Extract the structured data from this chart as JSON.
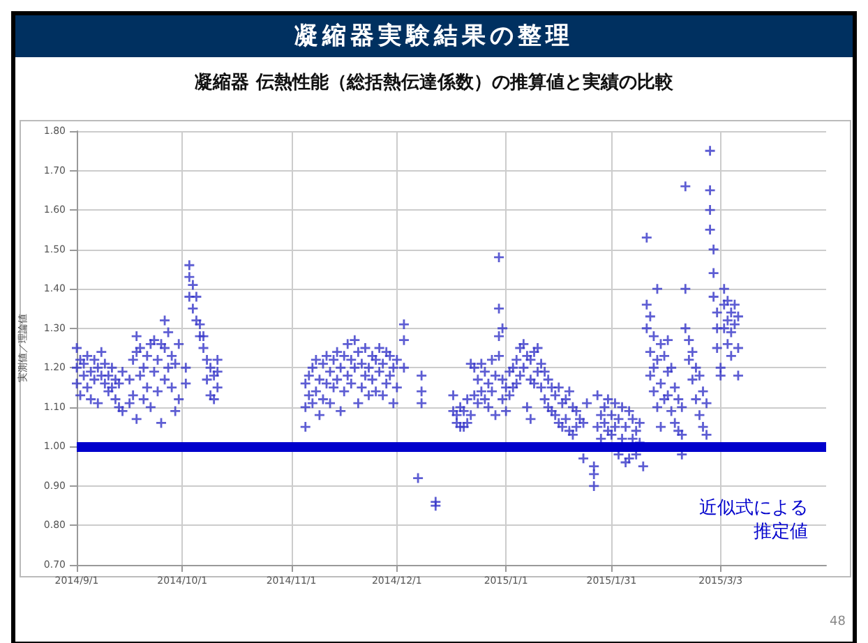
{
  "chart_data": {
    "type": "scatter",
    "title": "凝縮器実験結果の整理",
    "subtitle": "凝縮器 伝熱性能（総括熱伝達係数）の推算値と実績の比較",
    "ylabel": "実測値／理論値",
    "marker": "cross",
    "grid": true,
    "xlim": [
      "2014-09-01",
      "2015-04-02"
    ],
    "xticks": [
      {
        "value": "2014-09-01",
        "label": "2014/9/1"
      },
      {
        "value": "2014-10-01",
        "label": "2014/10/1"
      },
      {
        "value": "2014-11-01",
        "label": "2014/11/1"
      },
      {
        "value": "2014-12-01",
        "label": "2014/12/1"
      },
      {
        "value": "2015-01-01",
        "label": "2015/1/1"
      },
      {
        "value": "2015-01-31",
        "label": "2015/1/31"
      },
      {
        "value": "2015-03-03",
        "label": "2015/3/3"
      }
    ],
    "ylim": [
      0.7,
      1.8
    ],
    "yticks": [
      {
        "value": 0.7,
        "label": "0.70"
      },
      {
        "value": 0.8,
        "label": "0.80"
      },
      {
        "value": 0.9,
        "label": "0.90"
      },
      {
        "value": 1.0,
        "label": "1.00"
      },
      {
        "value": 1.1,
        "label": "1.10"
      },
      {
        "value": 1.2,
        "label": "1.20"
      },
      {
        "value": 1.3,
        "label": "1.30"
      },
      {
        "value": 1.4,
        "label": "1.40"
      },
      {
        "value": 1.5,
        "label": "1.50"
      },
      {
        "value": 1.6,
        "label": "1.60"
      },
      {
        "value": 1.7,
        "label": "1.70"
      },
      {
        "value": 1.8,
        "label": "1.80"
      }
    ],
    "ref_lines": [
      {
        "axis": "y",
        "value": 1.0,
        "label": "近似式による推定値",
        "color": "#0000cc"
      }
    ],
    "annotations": [
      "48"
    ],
    "series": [
      {
        "color": "#3535c8",
        "x": [
          "2014-09-01",
          "2014-09-01",
          "2014-09-01",
          "2014-09-02",
          "2014-09-02",
          "2014-09-03",
          "2014-09-03",
          "2014-09-04",
          "2014-09-04",
          "2014-09-05",
          "2014-09-05",
          "2014-09-06",
          "2014-09-06",
          "2014-09-07",
          "2014-09-07",
          "2014-09-08",
          "2014-09-08",
          "2014-09-09",
          "2014-09-09",
          "2014-09-10",
          "2014-09-10",
          "2014-09-11",
          "2014-09-11",
          "2014-09-12",
          "2014-09-12",
          "2014-09-13",
          "2014-09-13",
          "2014-09-14",
          "2014-09-14",
          "2014-09-16",
          "2014-09-16",
          "2014-09-17",
          "2014-09-17",
          "2014-09-18",
          "2014-09-18",
          "2014-09-18",
          "2014-09-19",
          "2014-09-19",
          "2014-09-20",
          "2014-09-20",
          "2014-09-21",
          "2014-09-21",
          "2014-09-22",
          "2014-09-22",
          "2014-09-23",
          "2014-09-23",
          "2014-09-24",
          "2014-09-24",
          "2014-09-25",
          "2014-09-25",
          "2014-09-26",
          "2014-09-26",
          "2014-09-26",
          "2014-09-27",
          "2014-09-27",
          "2014-09-28",
          "2014-09-28",
          "2014-09-29",
          "2014-09-29",
          "2014-09-30",
          "2014-09-30",
          "2014-10-02",
          "2014-10-02",
          "2014-10-03",
          "2014-10-03",
          "2014-10-03",
          "2014-10-04",
          "2014-10-04",
          "2014-10-05",
          "2014-10-05",
          "2014-10-06",
          "2014-10-06",
          "2014-10-07",
          "2014-10-07",
          "2014-10-08",
          "2014-10-08",
          "2014-10-09",
          "2014-10-09",
          "2014-10-10",
          "2014-10-10",
          "2014-10-11",
          "2014-10-11",
          "2014-10-11",
          "2014-11-05",
          "2014-11-05",
          "2014-11-05",
          "2014-11-06",
          "2014-11-06",
          "2014-11-07",
          "2014-11-07",
          "2014-11-08",
          "2014-11-08",
          "2014-11-09",
          "2014-11-09",
          "2014-11-10",
          "2014-11-10",
          "2014-11-11",
          "2014-11-11",
          "2014-11-12",
          "2014-11-12",
          "2014-11-13",
          "2014-11-13",
          "2014-11-14",
          "2014-11-14",
          "2014-11-15",
          "2014-11-15",
          "2014-11-16",
          "2014-11-16",
          "2014-11-17",
          "2014-11-17",
          "2014-11-18",
          "2014-11-18",
          "2014-11-19",
          "2014-11-19",
          "2014-11-20",
          "2014-11-20",
          "2014-11-21",
          "2014-11-21",
          "2014-11-22",
          "2014-11-22",
          "2014-11-23",
          "2014-11-23",
          "2014-11-24",
          "2014-11-24",
          "2014-11-25",
          "2014-11-25",
          "2014-11-26",
          "2014-11-26",
          "2014-11-27",
          "2014-11-27",
          "2014-11-28",
          "2014-11-28",
          "2014-11-29",
          "2014-11-29",
          "2014-11-30",
          "2014-11-30",
          "2014-12-01",
          "2014-12-01",
          "2014-12-03",
          "2014-12-03",
          "2014-12-03",
          "2014-12-07",
          "2014-12-08",
          "2014-12-08",
          "2014-12-08",
          "2014-12-12",
          "2014-12-12",
          "2014-12-17",
          "2014-12-17",
          "2014-12-18",
          "2014-12-18",
          "2014-12-19",
          "2014-12-19",
          "2014-12-20",
          "2014-12-20",
          "2014-12-21",
          "2014-12-21",
          "2014-12-22",
          "2014-12-22",
          "2014-12-23",
          "2014-12-23",
          "2014-12-24",
          "2014-12-24",
          "2014-12-25",
          "2014-12-25",
          "2014-12-26",
          "2014-12-26",
          "2014-12-27",
          "2014-12-27",
          "2014-12-28",
          "2014-12-28",
          "2014-12-29",
          "2014-12-29",
          "2014-12-30",
          "2014-12-30",
          "2014-12-30",
          "2014-12-30",
          "2014-12-31",
          "2014-12-31",
          "2014-12-31",
          "2015-01-01",
          "2015-01-01",
          "2015-01-02",
          "2015-01-02",
          "2015-01-03",
          "2015-01-03",
          "2015-01-04",
          "2015-01-04",
          "2015-01-05",
          "2015-01-05",
          "2015-01-06",
          "2015-01-06",
          "2015-01-07",
          "2015-01-07",
          "2015-01-08",
          "2015-01-08",
          "2015-01-08",
          "2015-01-09",
          "2015-01-09",
          "2015-01-10",
          "2015-01-10",
          "2015-01-11",
          "2015-01-11",
          "2015-01-12",
          "2015-01-12",
          "2015-01-13",
          "2015-01-13",
          "2015-01-14",
          "2015-01-14",
          "2015-01-15",
          "2015-01-15",
          "2015-01-16",
          "2015-01-16",
          "2015-01-17",
          "2015-01-17",
          "2015-01-18",
          "2015-01-18",
          "2015-01-19",
          "2015-01-19",
          "2015-01-20",
          "2015-01-20",
          "2015-01-21",
          "2015-01-21",
          "2015-01-22",
          "2015-01-23",
          "2015-01-23",
          "2015-01-24",
          "2015-01-26",
          "2015-01-26",
          "2015-01-26",
          "2015-01-27",
          "2015-01-27",
          "2015-01-28",
          "2015-01-28",
          "2015-01-29",
          "2015-01-29",
          "2015-01-30",
          "2015-01-30",
          "2015-01-31",
          "2015-01-31",
          "2015-02-01",
          "2015-02-01",
          "2015-02-02",
          "2015-02-02",
          "2015-02-03",
          "2015-02-03",
          "2015-02-04",
          "2015-02-04",
          "2015-02-05",
          "2015-02-05",
          "2015-02-06",
          "2015-02-06",
          "2015-02-07",
          "2015-02-07",
          "2015-02-08",
          "2015-02-08",
          "2015-02-09",
          "2015-02-10",
          "2015-02-10",
          "2015-02-10",
          "2015-02-11",
          "2015-02-11",
          "2015-02-11",
          "2015-02-12",
          "2015-02-12",
          "2015-02-12",
          "2015-02-13",
          "2015-02-13",
          "2015-02-13",
          "2015-02-14",
          "2015-02-14",
          "2015-02-14",
          "2015-02-15",
          "2015-02-15",
          "2015-02-16",
          "2015-02-16",
          "2015-02-16",
          "2015-02-17",
          "2015-02-17",
          "2015-02-18",
          "2015-02-18",
          "2015-02-19",
          "2015-02-19",
          "2015-02-20",
          "2015-02-20",
          "2015-02-20",
          "2015-02-21",
          "2015-02-21",
          "2015-02-21",
          "2015-02-22",
          "2015-02-22",
          "2015-02-23",
          "2015-02-23",
          "2015-02-24",
          "2015-02-24",
          "2015-02-25",
          "2015-02-25",
          "2015-02-26",
          "2015-02-26",
          "2015-02-27",
          "2015-02-27",
          "2015-02-28",
          "2015-02-28",
          "2015-02-28",
          "2015-02-28",
          "2015-03-01",
          "2015-03-01",
          "2015-03-01",
          "2015-03-02",
          "2015-03-02",
          "2015-03-02",
          "2015-03-03",
          "2015-03-03",
          "2015-03-04",
          "2015-03-04",
          "2015-03-04",
          "2015-03-05",
          "2015-03-05",
          "2015-03-05",
          "2015-03-06",
          "2015-03-06",
          "2015-03-06",
          "2015-03-07",
          "2015-03-07",
          "2015-03-08",
          "2015-03-08",
          "2015-03-08"
        ],
        "values": [
          1.25,
          1.2,
          1.16,
          1.22,
          1.13,
          1.21,
          1.18,
          1.15,
          1.23,
          1.19,
          1.12,
          1.22,
          1.17,
          1.2,
          1.11,
          1.24,
          1.18,
          1.21,
          1.16,
          1.18,
          1.14,
          1.2,
          1.15,
          1.17,
          1.12,
          1.16,
          1.1,
          1.19,
          1.09,
          1.17,
          1.11,
          1.22,
          1.13,
          1.28,
          1.24,
          1.07,
          1.25,
          1.18,
          1.2,
          1.12,
          1.23,
          1.15,
          1.26,
          1.1,
          1.27,
          1.19,
          1.22,
          1.14,
          1.26,
          1.06,
          1.25,
          1.32,
          1.17,
          1.29,
          1.2,
          1.23,
          1.15,
          1.21,
          1.09,
          1.26,
          1.12,
          1.2,
          1.16,
          1.46,
          1.43,
          1.38,
          1.41,
          1.35,
          1.38,
          1.32,
          1.31,
          1.28,
          1.28,
          1.25,
          1.22,
          1.17,
          1.2,
          1.13,
          1.18,
          1.12,
          1.22,
          1.15,
          1.19,
          1.16,
          1.1,
          1.05,
          1.18,
          1.13,
          1.2,
          1.11,
          1.22,
          1.14,
          1.17,
          1.08,
          1.21,
          1.12,
          1.23,
          1.16,
          1.19,
          1.11,
          1.22,
          1.15,
          1.24,
          1.17,
          1.2,
          1.09,
          1.23,
          1.14,
          1.26,
          1.18,
          1.22,
          1.16,
          1.27,
          1.2,
          1.24,
          1.11,
          1.21,
          1.15,
          1.25,
          1.18,
          1.2,
          1.13,
          1.23,
          1.17,
          1.22,
          1.14,
          1.25,
          1.19,
          1.21,
          1.13,
          1.24,
          1.16,
          1.23,
          1.18,
          1.2,
          1.11,
          1.22,
          1.15,
          1.31,
          1.27,
          1.2,
          0.92,
          1.18,
          1.14,
          1.11,
          0.86,
          0.85,
          1.09,
          1.13,
          1.08,
          1.06,
          1.1,
          1.05,
          1.05,
          1.09,
          1.12,
          1.06,
          1.21,
          1.08,
          1.2,
          1.13,
          1.17,
          1.11,
          1.21,
          1.14,
          1.19,
          1.12,
          1.16,
          1.1,
          1.22,
          1.14,
          1.18,
          1.08,
          1.35,
          1.28,
          1.23,
          1.48,
          1.3,
          1.17,
          1.12,
          1.15,
          1.09,
          1.19,
          1.13,
          1.2,
          1.15,
          1.22,
          1.16,
          1.25,
          1.18,
          1.26,
          1.2,
          1.23,
          1.1,
          1.22,
          1.17,
          1.07,
          1.24,
          1.16,
          1.25,
          1.19,
          1.21,
          1.15,
          1.19,
          1.12,
          1.17,
          1.1,
          1.15,
          1.09,
          1.13,
          1.08,
          1.15,
          1.06,
          1.11,
          1.05,
          1.12,
          1.07,
          1.14,
          1.04,
          1.1,
          1.03,
          1.09,
          1.05,
          1.07,
          1.06,
          0.97,
          1.11,
          0.95,
          0.93,
          0.9,
          1.13,
          1.05,
          1.08,
          1.02,
          1.1,
          1.06,
          1.12,
          1.04,
          1.08,
          1.03,
          1.11,
          1.05,
          1.07,
          0.98,
          1.1,
          1.02,
          1.05,
          0.96,
          1.09,
          0.97,
          1.07,
          1.02,
          1.04,
          0.98,
          1.06,
          1.01,
          0.95,
          1.53,
          1.36,
          1.3,
          1.33,
          1.24,
          1.18,
          1.28,
          1.2,
          1.14,
          1.4,
          1.22,
          1.1,
          1.26,
          1.16,
          1.05,
          1.23,
          1.12,
          1.27,
          1.19,
          1.13,
          1.2,
          1.09,
          1.15,
          1.06,
          1.12,
          1.04,
          1.1,
          1.03,
          0.98,
          1.66,
          1.4,
          1.3,
          1.27,
          1.22,
          1.24,
          1.17,
          1.2,
          1.12,
          1.18,
          1.08,
          1.14,
          1.05,
          1.11,
          1.03,
          1.75,
          1.65,
          1.6,
          1.55,
          1.5,
          1.44,
          1.38,
          1.34,
          1.3,
          1.25,
          1.2,
          1.18,
          1.4,
          1.36,
          1.3,
          1.37,
          1.32,
          1.26,
          1.34,
          1.29,
          1.23,
          1.36,
          1.31,
          1.33,
          1.25,
          1.18
        ]
      }
    ]
  }
}
